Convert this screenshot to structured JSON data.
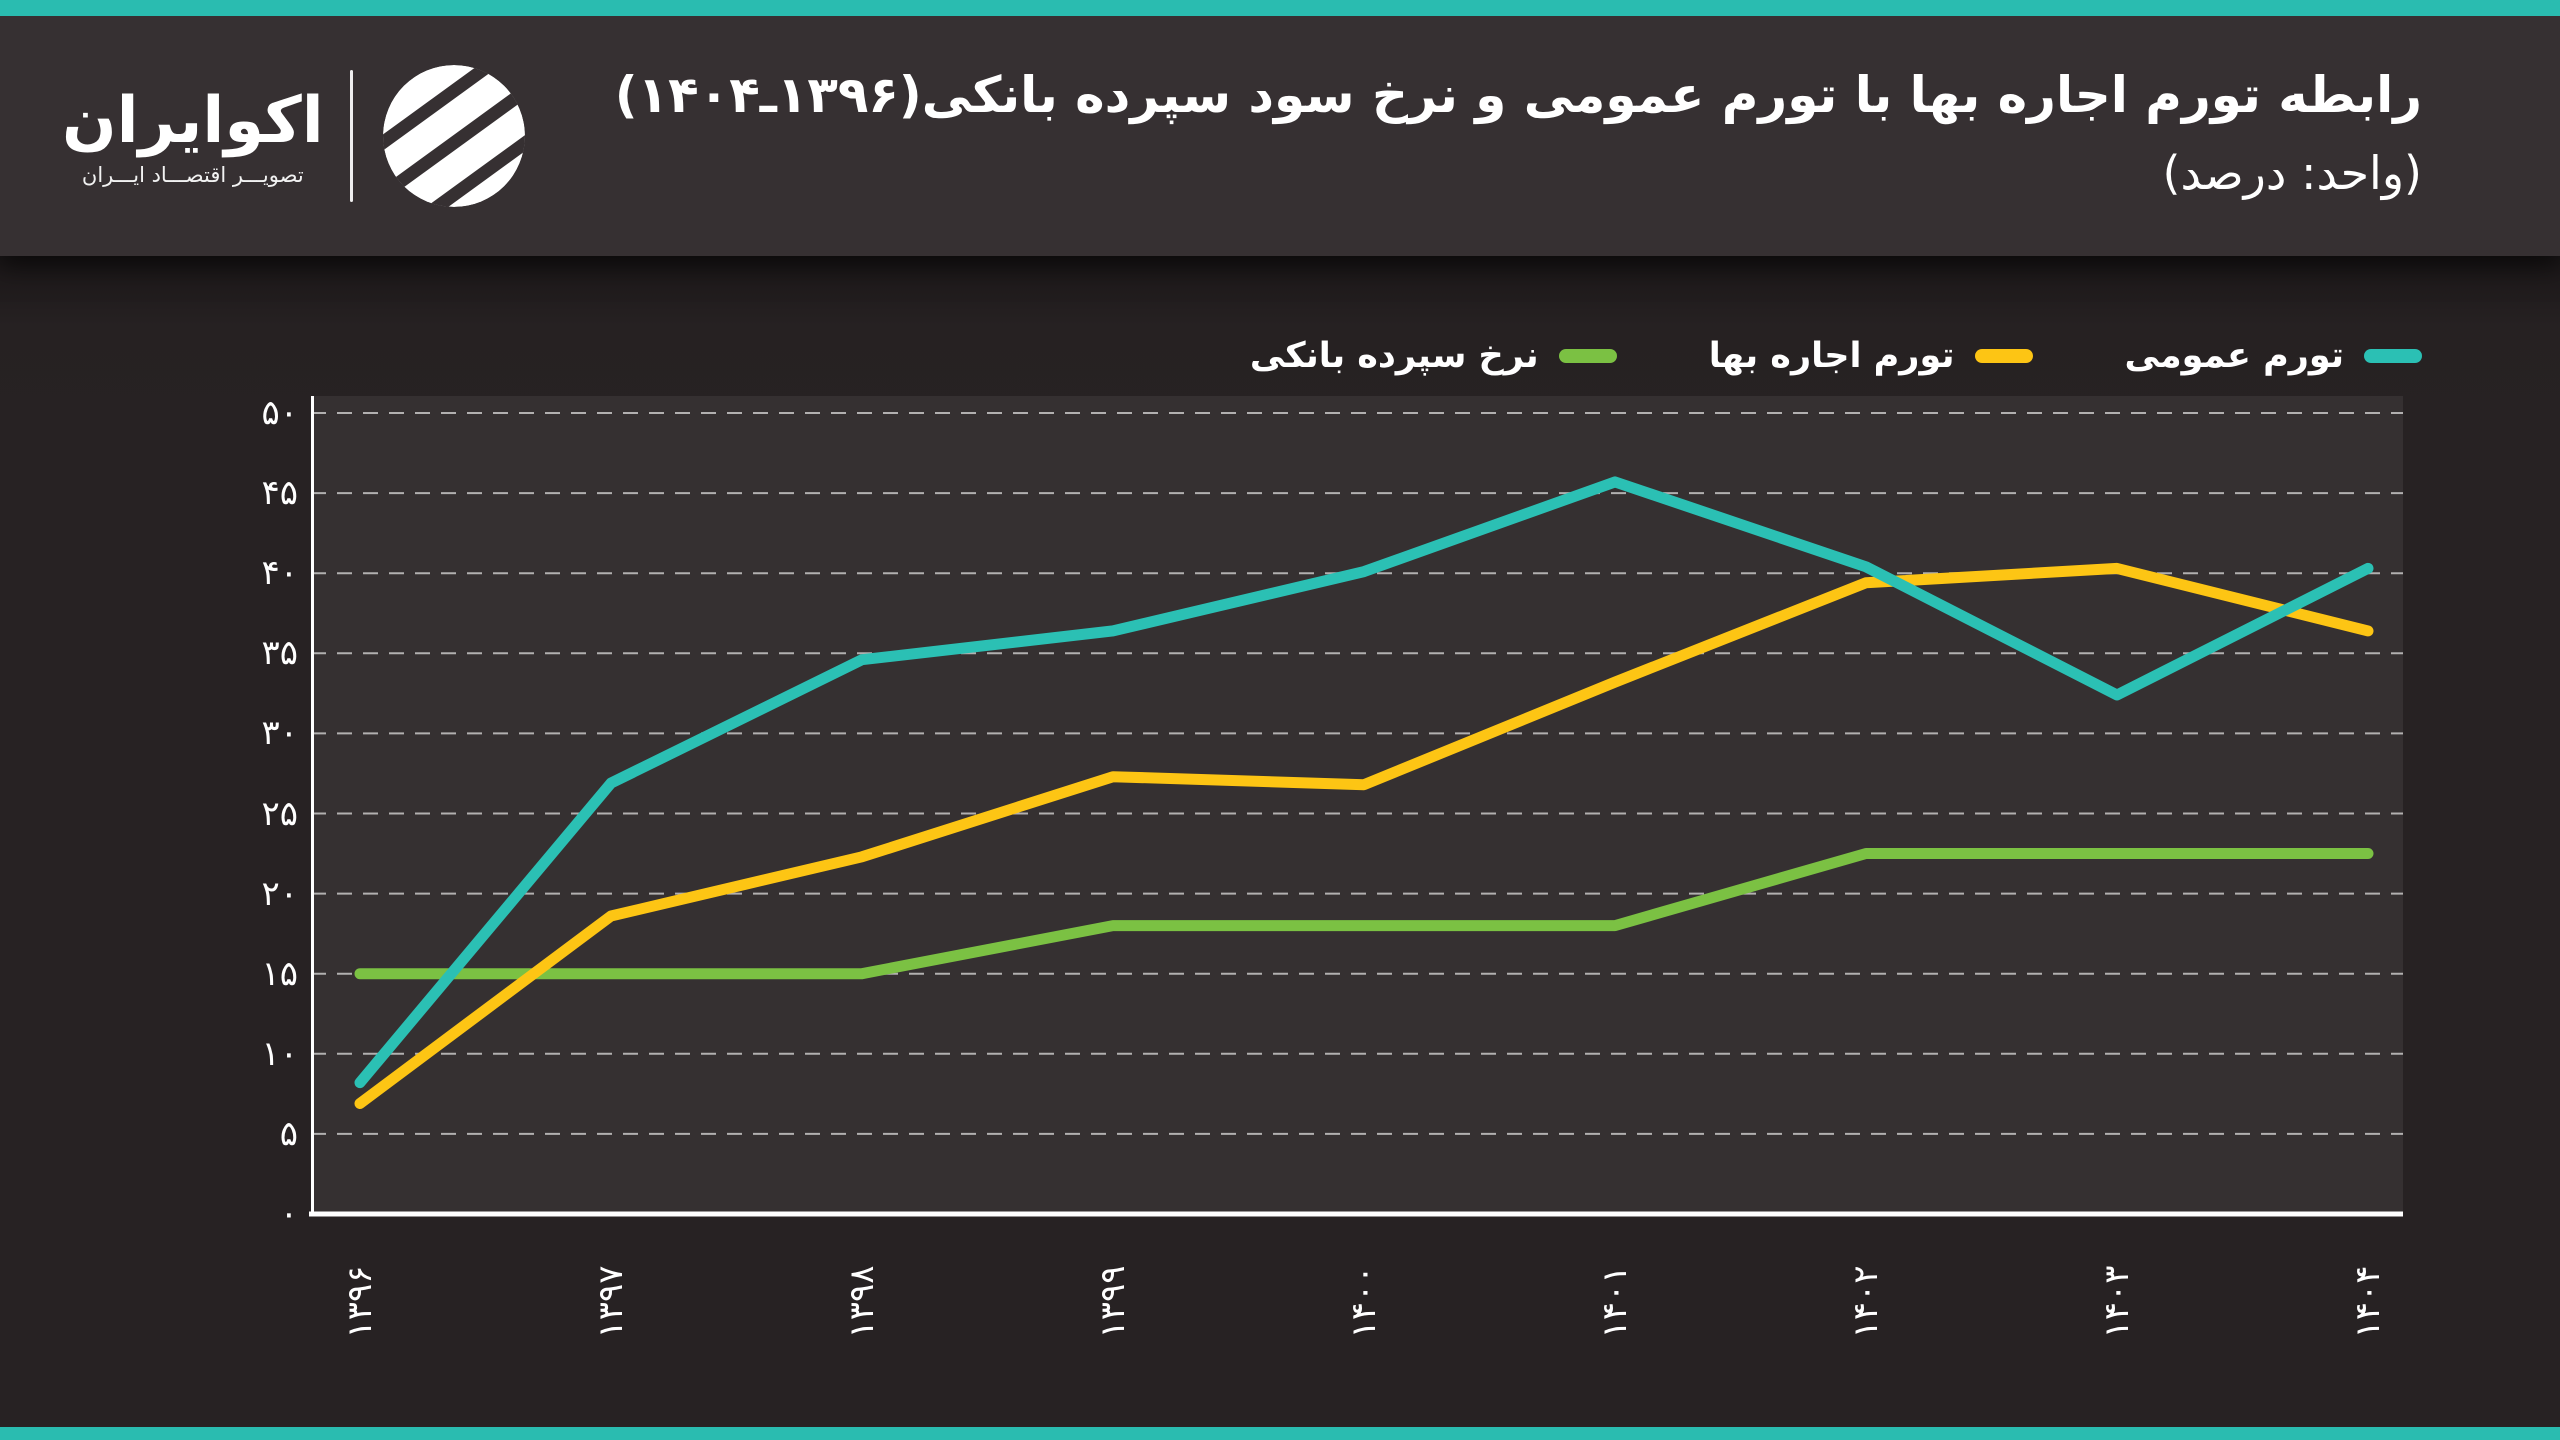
{
  "page": {
    "accent_color": "#2ABCB0",
    "background": "#272223",
    "header_background": "#363032"
  },
  "header": {
    "title": "رابطه تورم اجاره بها با تورم عمومی و نرخ سود سپرده بانکی(۱۳۹۶ـ۱۴۰۴)",
    "subtitle": "(واحد: درصد)",
    "logo": {
      "name": "اکوایران",
      "tagline": "تصویـــر اقتصـــاد ایـــران"
    }
  },
  "legend": [
    {
      "key": "general_inflation",
      "label": "تورم عمومی",
      "color": "#2BC0B4"
    },
    {
      "key": "rent_inflation",
      "label": "تورم اجاره بها",
      "color": "#FDC514"
    },
    {
      "key": "deposit_rate",
      "label": "نرخ سپرده بانکی",
      "color": "#7BC143"
    }
  ],
  "colors": {
    "panel": "#353031",
    "grid": "rgba(255,255,255,0.62)",
    "axis": "#ffffff",
    "label": "#ffffff"
  },
  "chart_data": {
    "type": "line",
    "title": "رابطه تورم اجاره بها با تورم عمومی و نرخ سود سپرده بانکی",
    "unit_label": "درصد",
    "period_label": "۱۳۹۶ـ۱۴۰۴",
    "categories": [
      1396,
      1397,
      1398,
      1399,
      1400,
      1401,
      1402,
      1403,
      1404
    ],
    "categories_fa": [
      "۱۳۹۶",
      "۱۳۹۷",
      "۱۳۹۸",
      "۱۳۹۹",
      "۱۴۰۰",
      "۱۴۰۱",
      "۱۴۰۲",
      "۱۴۰۳",
      "۱۴۰۴"
    ],
    "series": [
      {
        "key": "general_inflation",
        "name": "تورم عمومی",
        "color": "#2BC0B4",
        "values": [
          8.2,
          26.9,
          34.6,
          36.4,
          40.1,
          45.7,
          40.4,
          32.4,
          40.3
        ]
      },
      {
        "key": "rent_inflation",
        "name": "تورم اجاره بها",
        "color": "#FDC514",
        "values": [
          6.9,
          18.6,
          22.3,
          27.3,
          26.8,
          33.2,
          39.4,
          40.3,
          36.4
        ]
      },
      {
        "key": "deposit_rate",
        "name": "نرخ سپرده بانکی",
        "color": "#7BC143",
        "values": [
          15,
          15,
          15,
          18,
          18,
          18,
          22.5,
          22.5,
          22.5
        ]
      }
    ],
    "ylim": [
      0,
      50
    ],
    "y_ticks": [
      {
        "v": 0,
        "label": "۰"
      },
      {
        "v": 5,
        "label": "۵"
      },
      {
        "v": 10,
        "label": "۱۰"
      },
      {
        "v": 15,
        "label": "۱۵"
      },
      {
        "v": 20,
        "label": "۲۰"
      },
      {
        "v": 25,
        "label": "۲۵"
      },
      {
        "v": 30,
        "label": "۳۰"
      },
      {
        "v": 35,
        "label": "۳۵"
      },
      {
        "v": 40,
        "label": "۴۰"
      },
      {
        "v": 45,
        "label": "۴۵"
      },
      {
        "v": 50,
        "label": "۵۰"
      }
    ],
    "grid": "horizontal-dashed",
    "legend_position": "top-right"
  }
}
